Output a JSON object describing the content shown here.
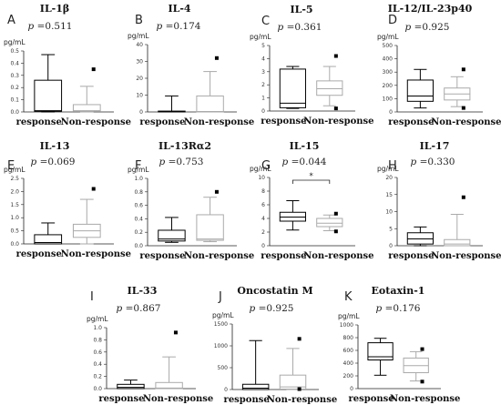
{
  "figure": {
    "p_prefix": "p"
  },
  "chart_data": [
    {
      "type": "boxplot",
      "letter": "A",
      "title": "IL-1β",
      "unit": "pg/mL",
      "p": "=0.511",
      "ylim": [
        0,
        0.5
      ],
      "ticks": [
        "0.0",
        "0.1",
        "0.2",
        "0.3",
        "0.4",
        "0.5"
      ],
      "categories": [
        "response",
        "Non-response"
      ],
      "series": [
        {
          "q1": 0.005,
          "median": 0.01,
          "q3": 0.26,
          "whisker_low": 0.0,
          "whisker_high": 0.47,
          "outliers": []
        },
        {
          "q1": 0.005,
          "median": 0.01,
          "q3": 0.06,
          "whisker_low": 0.0,
          "whisker_high": 0.21,
          "outliers": [
            0.35
          ]
        }
      ]
    },
    {
      "type": "boxplot",
      "letter": "B",
      "title": "IL-4",
      "unit": "pg/mL",
      "p": "=0.174",
      "ylim": [
        0,
        40
      ],
      "ticks": [
        "0",
        "10",
        "20",
        "30",
        "40"
      ],
      "categories": [
        "response",
        "Non-response"
      ],
      "series": [
        {
          "q1": 0,
          "median": 0,
          "q3": 0.5,
          "whisker_low": 0,
          "whisker_high": 9.5,
          "outliers": []
        },
        {
          "q1": 0,
          "median": 0.3,
          "q3": 9.5,
          "whisker_low": 0,
          "whisker_high": 24,
          "outliers": [
            32
          ]
        }
      ]
    },
    {
      "type": "boxplot",
      "letter": "C",
      "title": "IL-5",
      "unit": "pg/mL",
      "p": "=0.361",
      "ylim": [
        0,
        5
      ],
      "ticks": [
        "0",
        "1",
        "2",
        "3",
        "4",
        "5"
      ],
      "categories": [
        "response",
        "Non-response"
      ],
      "series": [
        {
          "q1": 0.25,
          "median": 0.6,
          "q3": 3.2,
          "whisker_low": 0.2,
          "whisker_high": 3.4,
          "outliers": []
        },
        {
          "q1": 1.2,
          "median": 1.7,
          "q3": 2.3,
          "whisker_low": 0.4,
          "whisker_high": 3.4,
          "outliers": [
            4.2,
            0.2
          ]
        }
      ]
    },
    {
      "type": "boxplot",
      "letter": "D",
      "title": "IL-12/IL-23p40",
      "unit": "pg/mL",
      "p": "=0.925",
      "ylim": [
        0,
        500
      ],
      "ticks": [
        "0",
        "100",
        "200",
        "300",
        "400",
        "500"
      ],
      "categories": [
        "response",
        "Non-response"
      ],
      "series": [
        {
          "q1": 80,
          "median": 120,
          "q3": 240,
          "whisker_low": 30,
          "whisker_high": 320,
          "outliers": []
        },
        {
          "q1": 90,
          "median": 135,
          "q3": 180,
          "whisker_low": 40,
          "whisker_high": 265,
          "outliers": [
            320,
            30
          ]
        }
      ]
    },
    {
      "type": "boxplot",
      "letter": "E",
      "title": "IL-13",
      "unit": "pg/mL",
      "p": "=0.069",
      "ylim": [
        0,
        2.5
      ],
      "ticks": [
        "0.0",
        "0.5",
        "1.0",
        "1.5",
        "2.0",
        "2.5"
      ],
      "categories": [
        "response",
        "Non-response"
      ],
      "series": [
        {
          "q1": 0,
          "median": 0.05,
          "q3": 0.35,
          "whisker_low": 0,
          "whisker_high": 0.8,
          "outliers": []
        },
        {
          "q1": 0.25,
          "median": 0.5,
          "q3": 0.75,
          "whisker_low": 0,
          "whisker_high": 1.7,
          "outliers": [
            2.1
          ]
        }
      ]
    },
    {
      "type": "boxplot",
      "letter": "F",
      "title": "IL-13Rα2",
      "unit": "pg/mL",
      "p": "=0.753",
      "ylim": [
        0,
        1.0
      ],
      "ticks": [
        "0.0",
        "0.2",
        "0.4",
        "0.6",
        "0.8",
        "1.0"
      ],
      "categories": [
        "response",
        "Non-response"
      ],
      "series": [
        {
          "q1": 0.07,
          "median": 0.1,
          "q3": 0.23,
          "whisker_low": 0.05,
          "whisker_high": 0.42,
          "outliers": []
        },
        {
          "q1": 0.08,
          "median": 0.1,
          "q3": 0.46,
          "whisker_low": 0.06,
          "whisker_high": 0.72,
          "outliers": [
            0.8
          ]
        }
      ]
    },
    {
      "type": "boxplot",
      "letter": "G",
      "title": "IL-15",
      "unit": "pg/mL",
      "p": "=0.044",
      "ylim": [
        0,
        10
      ],
      "ticks": [
        "0",
        "2",
        "4",
        "6",
        "8",
        "10"
      ],
      "categories": [
        "response",
        "Non-response"
      ],
      "significance": "*",
      "series": [
        {
          "q1": 3.6,
          "median": 4.2,
          "q3": 4.9,
          "whisker_low": 2.3,
          "whisker_high": 6.6,
          "outliers": []
        },
        {
          "q1": 2.8,
          "median": 3.3,
          "q3": 4.0,
          "whisker_low": 2.2,
          "whisker_high": 4.5,
          "outliers": [
            4.7,
            2.1
          ]
        }
      ]
    },
    {
      "type": "boxplot",
      "letter": "H",
      "title": "IL-17",
      "unit": "pg/mL",
      "p": "=0.330",
      "ylim": [
        0,
        20
      ],
      "ticks": [
        "0",
        "5",
        "10",
        "15",
        "20"
      ],
      "categories": [
        "response",
        "Non-response"
      ],
      "series": [
        {
          "q1": 0.5,
          "median": 2,
          "q3": 3.8,
          "whisker_low": 0,
          "whisker_high": 5.5,
          "outliers": []
        },
        {
          "q1": 0,
          "median": 0.5,
          "q3": 1.8,
          "whisker_low": 0,
          "whisker_high": 9.2,
          "outliers": [
            14.2
          ]
        }
      ]
    },
    {
      "type": "boxplot",
      "letter": "I",
      "title": "IL-33",
      "unit": "pg/mL",
      "p": "=0.867",
      "ylim": [
        0,
        1.0
      ],
      "ticks": [
        "0.0",
        "0.2",
        "0.4",
        "0.6",
        "0.8",
        "1.0"
      ],
      "categories": [
        "response",
        "Non-response"
      ],
      "series": [
        {
          "q1": 0,
          "median": 0.02,
          "q3": 0.07,
          "whisker_low": 0,
          "whisker_high": 0.14,
          "outliers": []
        },
        {
          "q1": 0,
          "median": 0.01,
          "q3": 0.1,
          "whisker_low": 0,
          "whisker_high": 0.52,
          "outliers": [
            0.92
          ]
        }
      ]
    },
    {
      "type": "boxplot",
      "letter": "J",
      "title": "Oncostatin M",
      "unit": "pg/mL",
      "p": "=0.925",
      "ylim": [
        0,
        1500
      ],
      "ticks": [
        "0",
        "500",
        "1000",
        "1500"
      ],
      "categories": [
        "response",
        "Non-response"
      ],
      "series": [
        {
          "q1": 0,
          "median": 30,
          "q3": 120,
          "whisker_low": 0,
          "whisker_high": 1120,
          "outliers": []
        },
        {
          "q1": 10,
          "median": 60,
          "q3": 330,
          "whisker_low": 0,
          "whisker_high": 940,
          "outliers": [
            1160,
            10
          ]
        }
      ]
    },
    {
      "type": "boxplot",
      "letter": "K",
      "title": "Eotaxin-1",
      "unit": "pg/mL",
      "p": "=0.176",
      "ylim": [
        0,
        1000
      ],
      "ticks": [
        "0",
        "200",
        "400",
        "600",
        "800",
        "1000"
      ],
      "categories": [
        "response",
        "Non-response"
      ],
      "series": [
        {
          "q1": 450,
          "median": 500,
          "q3": 720,
          "whisker_low": 210,
          "whisker_high": 790,
          "outliers": []
        },
        {
          "q1": 250,
          "median": 360,
          "q3": 480,
          "whisker_low": 120,
          "whisker_high": 580,
          "outliers": [
            620,
            110
          ]
        }
      ]
    }
  ]
}
